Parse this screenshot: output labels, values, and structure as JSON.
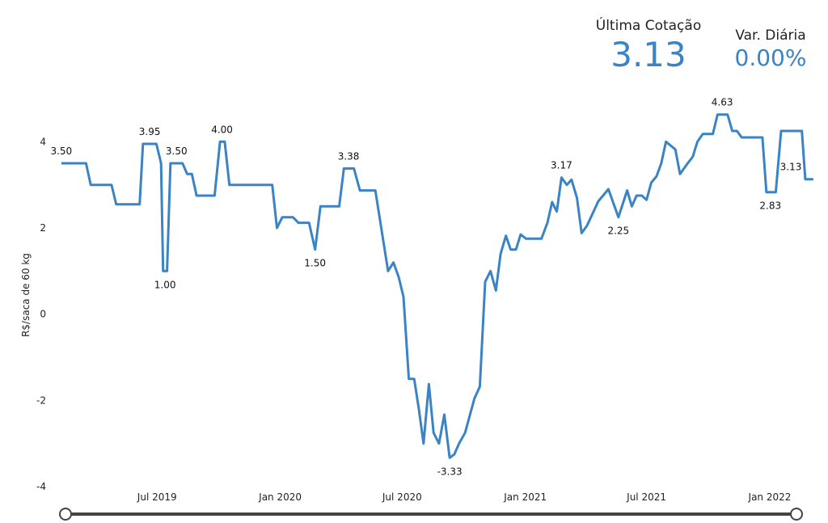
{
  "kpis": {
    "last_label": "Última Cotação",
    "last_value": "3.13",
    "var_label": "Var. Diária",
    "var_value": "0.00%"
  },
  "colors": {
    "line": "#3a83c4",
    "slider": "#444444"
  },
  "chart_data": {
    "type": "line",
    "ylabel": "R$/saca de 60 kg",
    "ylim": [
      -4,
      5
    ],
    "y_ticks": [
      4,
      2,
      0,
      -2,
      -4
    ],
    "x_range": [
      "2019-02-01",
      "2022-02-28"
    ],
    "x_ticks": [
      {
        "date": "2019-07-01",
        "label": "Jul 2019"
      },
      {
        "date": "2020-01-01",
        "label": "Jan 2020"
      },
      {
        "date": "2020-07-01",
        "label": "Jul 2020"
      },
      {
        "date": "2021-01-01",
        "label": "Jan 2021"
      },
      {
        "date": "2021-07-01",
        "label": "Jul 2021"
      },
      {
        "date": "2022-01-01",
        "label": "Jan 2022"
      }
    ],
    "series": [
      {
        "points": [
          [
            "2019-02-08",
            3.5
          ],
          [
            "2019-03-01",
            3.5
          ],
          [
            "2019-03-17",
            3.5
          ],
          [
            "2019-03-24",
            3.0
          ],
          [
            "2019-04-10",
            3.0
          ],
          [
            "2019-04-24",
            3.0
          ],
          [
            "2019-05-01",
            2.55
          ],
          [
            "2019-05-20",
            2.55
          ],
          [
            "2019-06-05",
            2.55
          ],
          [
            "2019-06-10",
            3.95
          ],
          [
            "2019-06-30",
            3.95
          ],
          [
            "2019-07-07",
            3.5
          ],
          [
            "2019-07-10",
            1.0
          ],
          [
            "2019-07-16",
            1.0
          ],
          [
            "2019-07-21",
            3.5
          ],
          [
            "2019-07-30",
            3.5
          ],
          [
            "2019-08-08",
            3.5
          ],
          [
            "2019-08-15",
            3.25
          ],
          [
            "2019-08-22",
            3.25
          ],
          [
            "2019-08-29",
            2.75
          ],
          [
            "2019-09-25",
            2.75
          ],
          [
            "2019-10-03",
            4.0
          ],
          [
            "2019-10-10",
            4.0
          ],
          [
            "2019-10-17",
            3.0
          ],
          [
            "2019-11-18",
            3.0
          ],
          [
            "2019-12-20",
            3.0
          ],
          [
            "2019-12-27",
            2.0
          ],
          [
            "2020-01-04",
            2.25
          ],
          [
            "2020-01-20",
            2.25
          ],
          [
            "2020-01-28",
            2.12
          ],
          [
            "2020-02-13",
            2.12
          ],
          [
            "2020-02-22",
            1.5
          ],
          [
            "2020-03-01",
            2.5
          ],
          [
            "2020-03-20",
            2.5
          ],
          [
            "2020-03-29",
            2.5
          ],
          [
            "2020-04-05",
            3.38
          ],
          [
            "2020-04-20",
            3.38
          ],
          [
            "2020-04-29",
            2.87
          ],
          [
            "2020-05-22",
            2.87
          ],
          [
            "2020-06-10",
            1.0
          ],
          [
            "2020-06-18",
            1.2
          ],
          [
            "2020-06-26",
            0.85
          ],
          [
            "2020-07-03",
            0.4
          ],
          [
            "2020-07-11",
            -1.5
          ],
          [
            "2020-07-19",
            -1.5
          ],
          [
            "2020-07-26",
            -2.2
          ],
          [
            "2020-08-02",
            -3.0
          ],
          [
            "2020-08-10",
            -1.62
          ],
          [
            "2020-08-17",
            -2.75
          ],
          [
            "2020-08-25",
            -3.0
          ],
          [
            "2020-09-02",
            -2.33
          ],
          [
            "2020-09-10",
            -3.33
          ],
          [
            "2020-09-17",
            -3.25
          ],
          [
            "2020-09-24",
            -3.0
          ],
          [
            "2020-10-03",
            -2.75
          ],
          [
            "2020-10-10",
            -2.35
          ],
          [
            "2020-10-17",
            -1.95
          ],
          [
            "2020-10-25",
            -1.68
          ],
          [
            "2020-11-02",
            0.75
          ],
          [
            "2020-11-10",
            1.0
          ],
          [
            "2020-11-18",
            0.55
          ],
          [
            "2020-11-25",
            1.4
          ],
          [
            "2020-12-03",
            1.82
          ],
          [
            "2020-12-10",
            1.5
          ],
          [
            "2020-12-18",
            1.5
          ],
          [
            "2020-12-25",
            1.85
          ],
          [
            "2021-01-02",
            1.75
          ],
          [
            "2021-01-10",
            1.75
          ],
          [
            "2021-01-25",
            1.75
          ],
          [
            "2021-02-03",
            2.12
          ],
          [
            "2021-02-10",
            2.6
          ],
          [
            "2021-02-17",
            2.38
          ],
          [
            "2021-02-24",
            3.17
          ],
          [
            "2021-03-04",
            3.0
          ],
          [
            "2021-03-11",
            3.12
          ],
          [
            "2021-03-19",
            2.7
          ],
          [
            "2021-03-26",
            1.88
          ],
          [
            "2021-04-03",
            2.05
          ],
          [
            "2021-04-20",
            2.62
          ],
          [
            "2021-04-27",
            2.75
          ],
          [
            "2021-05-05",
            2.9
          ],
          [
            "2021-05-20",
            2.25
          ],
          [
            "2021-06-02",
            2.87
          ],
          [
            "2021-06-09",
            2.5
          ],
          [
            "2021-06-16",
            2.75
          ],
          [
            "2021-06-24",
            2.75
          ],
          [
            "2021-07-01",
            2.65
          ],
          [
            "2021-07-08",
            3.05
          ],
          [
            "2021-07-16",
            3.2
          ],
          [
            "2021-07-23",
            3.5
          ],
          [
            "2021-07-30",
            4.0
          ],
          [
            "2021-08-13",
            3.82
          ],
          [
            "2021-08-20",
            3.25
          ],
          [
            "2021-08-30",
            3.47
          ],
          [
            "2021-09-08",
            3.65
          ],
          [
            "2021-09-15",
            4.0
          ],
          [
            "2021-09-23",
            4.18
          ],
          [
            "2021-10-08",
            4.18
          ],
          [
            "2021-10-15",
            4.63
          ],
          [
            "2021-10-30",
            4.63
          ],
          [
            "2021-11-06",
            4.25
          ],
          [
            "2021-11-13",
            4.25
          ],
          [
            "2021-11-20",
            4.1
          ],
          [
            "2021-12-05",
            4.1
          ],
          [
            "2021-12-21",
            4.1
          ],
          [
            "2021-12-27",
            2.83
          ],
          [
            "2022-01-10",
            2.83
          ],
          [
            "2022-01-18",
            4.25
          ],
          [
            "2022-02-07",
            4.25
          ],
          [
            "2022-02-18",
            4.25
          ],
          [
            "2022-02-23",
            3.13
          ],
          [
            "2022-03-07",
            3.13
          ]
        ]
      }
    ],
    "labels": [
      {
        "date": "2019-02-08",
        "value": 3.5,
        "text": "3.50",
        "pos": "above"
      },
      {
        "date": "2019-06-20",
        "value": 3.95,
        "text": "3.95",
        "pos": "above"
      },
      {
        "date": "2019-07-13",
        "value": 1.0,
        "text": "1.00",
        "pos": "below"
      },
      {
        "date": "2019-07-30",
        "value": 3.5,
        "text": "3.50",
        "pos": "above"
      },
      {
        "date": "2019-10-06",
        "value": 4.0,
        "text": "4.00",
        "pos": "above"
      },
      {
        "date": "2020-02-22",
        "value": 1.5,
        "text": "1.50",
        "pos": "below"
      },
      {
        "date": "2020-04-12",
        "value": 3.38,
        "text": "3.38",
        "pos": "above"
      },
      {
        "date": "2020-09-10",
        "value": -3.33,
        "text": "-3.33",
        "pos": "below"
      },
      {
        "date": "2021-02-24",
        "value": 3.17,
        "text": "3.17",
        "pos": "above"
      },
      {
        "date": "2021-05-20",
        "value": 2.25,
        "text": "2.25",
        "pos": "below"
      },
      {
        "date": "2021-10-22",
        "value": 4.63,
        "text": "4.63",
        "pos": "above"
      },
      {
        "date": "2022-01-02",
        "value": 2.83,
        "text": "2.83",
        "pos": "below"
      },
      {
        "date": "2022-02-28",
        "value": 3.13,
        "text": "3.13",
        "pos": "above"
      }
    ]
  }
}
